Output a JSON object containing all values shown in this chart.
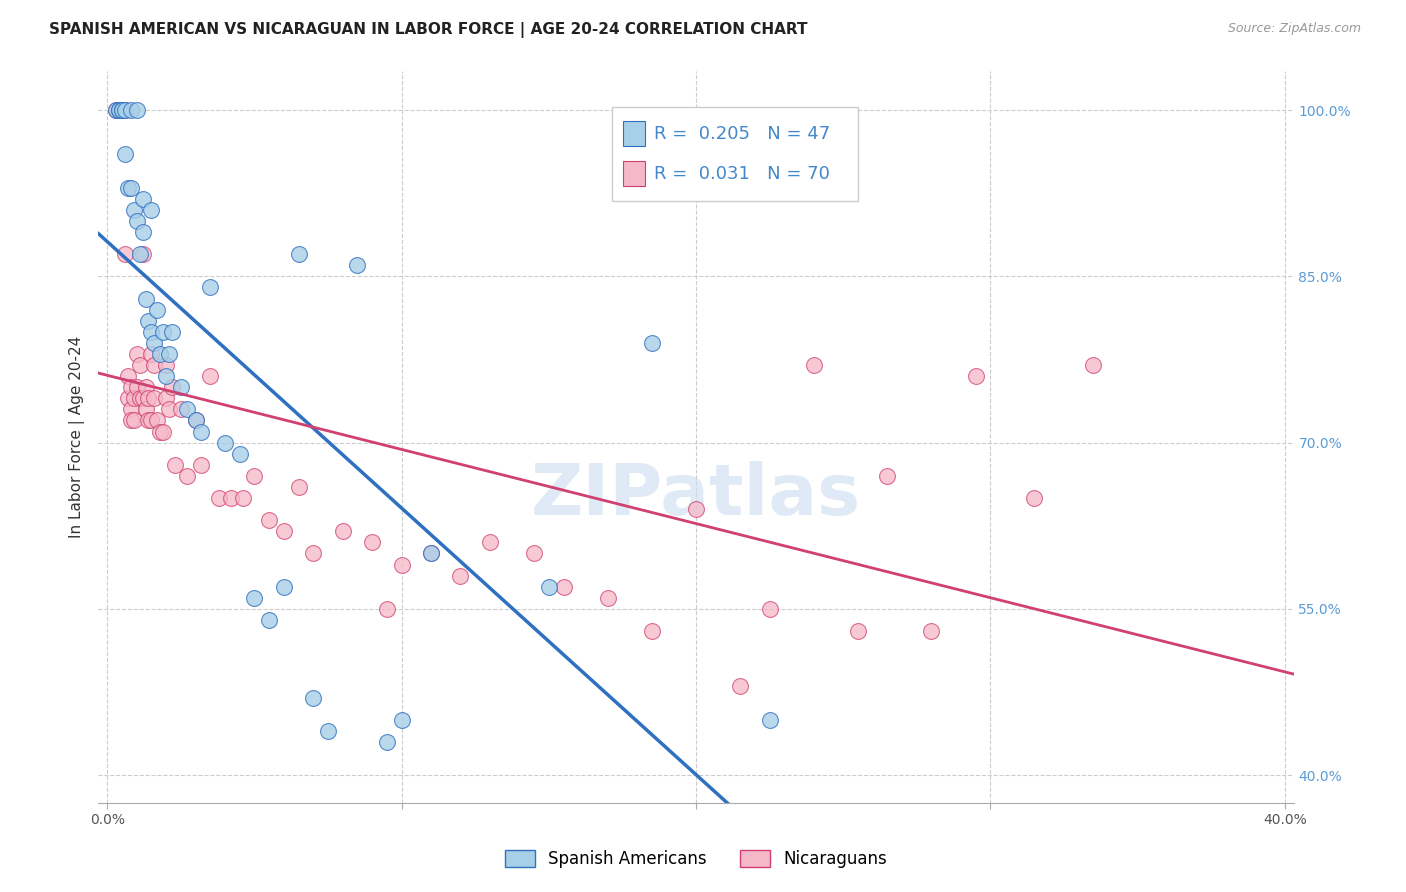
{
  "title": "SPANISH AMERICAN VS NICARAGUAN IN LABOR FORCE | AGE 20-24 CORRELATION CHART",
  "source": "Source: ZipAtlas.com",
  "ylabel": "In Labor Force | Age 20-24",
  "legend_labels": [
    "Spanish Americans",
    "Nicaraguans"
  ],
  "r_blue": 0.205,
  "n_blue": 47,
  "r_pink": 0.031,
  "n_pink": 70,
  "blue_color": "#a8cfe8",
  "pink_color": "#f5b8c8",
  "trend_blue": "#3070c0",
  "trend_pink": "#d04070",
  "background": "#ffffff",
  "grid_color": "#cccccc",
  "watermark": "ZIPatlas",
  "xlim": [
    -0.003,
    0.403
  ],
  "ylim": [
    0.375,
    1.035
  ],
  "ytick_vals": [
    0.4,
    0.55,
    0.7,
    0.85,
    1.0
  ],
  "ytick_labels": [
    "40.0%",
    "55.0%",
    "70.0%",
    "85.0%",
    "100.0%"
  ],
  "xtick_vals": [
    0.0,
    0.1,
    0.2,
    0.3,
    0.4
  ],
  "xtick_labels": [
    "0.0%",
    "",
    "",
    "",
    "40.0%"
  ],
  "blue_x": [
    0.003,
    0.004,
    0.004,
    0.005,
    0.005,
    0.006,
    0.006,
    0.007,
    0.008,
    0.008,
    0.009,
    0.01,
    0.01,
    0.011,
    0.012,
    0.012,
    0.013,
    0.014,
    0.015,
    0.015,
    0.016,
    0.017,
    0.018,
    0.019,
    0.02,
    0.021,
    0.022,
    0.025,
    0.027,
    0.03,
    0.032,
    0.035,
    0.04,
    0.045,
    0.05,
    0.055,
    0.06,
    0.065,
    0.07,
    0.075,
    0.085,
    0.095,
    0.1,
    0.11,
    0.15,
    0.185,
    0.225
  ],
  "blue_y": [
    1.0,
    1.0,
    1.0,
    1.0,
    1.0,
    1.0,
    0.96,
    0.93,
    1.0,
    0.93,
    0.91,
    1.0,
    0.9,
    0.87,
    0.89,
    0.92,
    0.83,
    0.81,
    0.91,
    0.8,
    0.79,
    0.82,
    0.78,
    0.8,
    0.76,
    0.78,
    0.8,
    0.75,
    0.73,
    0.72,
    0.71,
    0.84,
    0.7,
    0.69,
    0.56,
    0.54,
    0.57,
    0.87,
    0.47,
    0.44,
    0.86,
    0.43,
    0.45,
    0.6,
    0.57,
    0.79,
    0.45
  ],
  "pink_x": [
    0.003,
    0.004,
    0.004,
    0.005,
    0.005,
    0.006,
    0.006,
    0.007,
    0.007,
    0.008,
    0.008,
    0.008,
    0.009,
    0.009,
    0.01,
    0.01,
    0.011,
    0.011,
    0.012,
    0.012,
    0.013,
    0.013,
    0.014,
    0.014,
    0.015,
    0.015,
    0.016,
    0.016,
    0.017,
    0.018,
    0.019,
    0.02,
    0.02,
    0.021,
    0.022,
    0.023,
    0.025,
    0.027,
    0.03,
    0.032,
    0.035,
    0.038,
    0.042,
    0.046,
    0.05,
    0.055,
    0.06,
    0.065,
    0.07,
    0.08,
    0.09,
    0.095,
    0.1,
    0.11,
    0.12,
    0.13,
    0.145,
    0.155,
    0.17,
    0.185,
    0.2,
    0.215,
    0.225,
    0.24,
    0.255,
    0.265,
    0.28,
    0.295,
    0.315,
    0.335
  ],
  "pink_y": [
    1.0,
    1.0,
    1.0,
    1.0,
    1.0,
    1.0,
    0.87,
    0.76,
    0.74,
    0.75,
    0.73,
    0.72,
    0.74,
    0.72,
    0.78,
    0.75,
    0.77,
    0.74,
    0.87,
    0.74,
    0.73,
    0.75,
    0.72,
    0.74,
    0.78,
    0.72,
    0.74,
    0.77,
    0.72,
    0.71,
    0.71,
    0.77,
    0.74,
    0.73,
    0.75,
    0.68,
    0.73,
    0.67,
    0.72,
    0.68,
    0.76,
    0.65,
    0.65,
    0.65,
    0.67,
    0.63,
    0.62,
    0.66,
    0.6,
    0.62,
    0.61,
    0.55,
    0.59,
    0.6,
    0.58,
    0.61,
    0.6,
    0.57,
    0.56,
    0.53,
    0.64,
    0.48,
    0.55,
    0.77,
    0.53,
    0.67,
    0.53,
    0.76,
    0.65,
    0.77
  ]
}
